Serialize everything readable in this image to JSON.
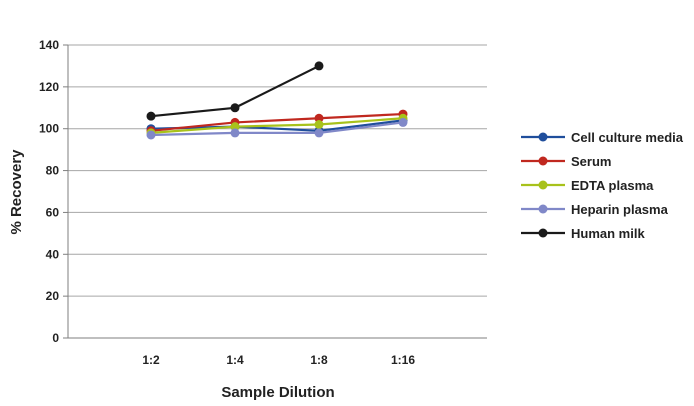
{
  "chart_data": {
    "type": "line",
    "title": "",
    "xlabel": "Sample Dilution",
    "ylabel": "% Recovery",
    "categories": [
      "1:2",
      "1:4",
      "1:8",
      "1:16"
    ],
    "ylim": [
      0,
      140
    ],
    "yticks": [
      0,
      20,
      40,
      60,
      80,
      100,
      120,
      140
    ],
    "grid": "horizontal",
    "legend_position": "right",
    "series": [
      {
        "name": "Cell culture media",
        "color": "#1f4e9c",
        "values": [
          100,
          101,
          99,
          104
        ]
      },
      {
        "name": "Serum",
        "color": "#c0281f",
        "values": [
          99,
          103,
          105,
          107
        ]
      },
      {
        "name": "EDTA plasma",
        "color": "#a8c21b",
        "values": [
          98,
          101,
          102,
          105
        ]
      },
      {
        "name": "Heparin plasma",
        "color": "#8088c8",
        "values": [
          97,
          98,
          98,
          103
        ]
      },
      {
        "name": "Human milk",
        "color": "#1a1a1a",
        "values": [
          106,
          110,
          130,
          null
        ]
      }
    ]
  }
}
